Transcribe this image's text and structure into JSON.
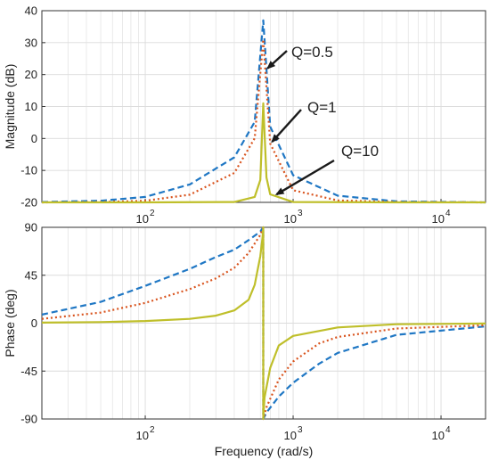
{
  "colors": {
    "q05": "#1f77c4",
    "q1": "#d9541e",
    "q10": "#bfbf2a",
    "axes": "#333333",
    "grid": "#dcdcdc",
    "arrow": "#1a1a1a"
  },
  "chart_data": [
    {
      "type": "line",
      "panel": "magnitude",
      "ylabel": "Magnitude (dB)",
      "xscale": "log",
      "xlim": [
        20,
        20000
      ],
      "ylim": [
        -20,
        40
      ],
      "grid": true,
      "yticks": [
        -20,
        -10,
        0,
        10,
        20,
        30,
        40
      ],
      "xtick_labels": [
        "10",
        "2",
        "10",
        "3",
        "10",
        "4"
      ],
      "annotations": [
        "Q=0.5",
        "Q=1",
        "Q=10"
      ],
      "center_frequency": 628,
      "series": [
        {
          "name": "Q=0.5",
          "style": "dashed",
          "color": "#1f77c4",
          "x": [
            20,
            50,
            100,
            200,
            400,
            550,
            628,
            700,
            1000,
            2000,
            5000,
            20000
          ],
          "y": [
            -19.9,
            -19.5,
            -18.3,
            -14.4,
            -5.9,
            5.2,
            37,
            3.7,
            -11.5,
            -17.9,
            -19.7,
            -20
          ]
        },
        {
          "name": "Q=1",
          "style": "dotted",
          "color": "#d9541e",
          "x": [
            20,
            50,
            100,
            200,
            400,
            550,
            628,
            700,
            1000,
            2000,
            5000,
            20000
          ],
          "y": [
            -20,
            -19.9,
            -19.5,
            -17.6,
            -10.8,
            0.1,
            31,
            -1.6,
            -16.2,
            -19.4,
            -19.9,
            -20
          ]
        },
        {
          "name": "Q=10",
          "style": "solid",
          "color": "#bfbf2a",
          "x": [
            20,
            100,
            400,
            550,
            600,
            628,
            660,
            700,
            1000,
            5000,
            20000
          ],
          "y": [
            -20,
            -20,
            -19.9,
            -18.3,
            -13,
            11,
            -12.2,
            -17.5,
            -19.9,
            -20,
            -20
          ]
        }
      ]
    },
    {
      "type": "line",
      "panel": "phase",
      "xlabel": "Frequency (rad/s)",
      "ylabel": "Phase (deg)",
      "xscale": "log",
      "xlim": [
        20,
        20000
      ],
      "ylim": [
        -90,
        90
      ],
      "grid": true,
      "yticks": [
        -90,
        -45,
        0,
        45,
        90
      ],
      "xtick_labels": [
        "10",
        "2",
        "10",
        "3",
        "10",
        "4"
      ],
      "center_frequency": 628,
      "series": [
        {
          "name": "Q=0.5",
          "style": "dashed",
          "color": "#1f77c4",
          "x": [
            20,
            50,
            100,
            200,
            300,
            400,
            500,
            600,
            628,
            628,
            660,
            800,
            1000,
            1500,
            2000,
            5000,
            20000
          ],
          "y": [
            8,
            20,
            35,
            51,
            62,
            69,
            78,
            86,
            90,
            -90,
            -84,
            -69,
            -56,
            -38,
            -28,
            -11,
            -3
          ]
        },
        {
          "name": "Q=1",
          "style": "dotted",
          "color": "#d9541e",
          "x": [
            20,
            50,
            100,
            200,
            300,
            400,
            500,
            600,
            628,
            628,
            660,
            800,
            1000,
            1500,
            2000,
            5000,
            20000
          ],
          "y": [
            4,
            10,
            19,
            32,
            42,
            52,
            66,
            83,
            90,
            -90,
            -79,
            -53,
            -36,
            -19,
            -13,
            -5,
            -2
          ]
        },
        {
          "name": "Q=10",
          "style": "solid",
          "color": "#bfbf2a",
          "x": [
            20,
            50,
            100,
            200,
            300,
            400,
            500,
            550,
            600,
            620,
            628,
            628,
            640,
            700,
            800,
            1000,
            2000,
            5000,
            20000
          ],
          "y": [
            0.5,
            1,
            2,
            4,
            7,
            12,
            22,
            36,
            63,
            80,
            90,
            -90,
            -70,
            -42,
            -21,
            -12,
            -4,
            -1,
            -0.3
          ]
        }
      ]
    }
  ]
}
